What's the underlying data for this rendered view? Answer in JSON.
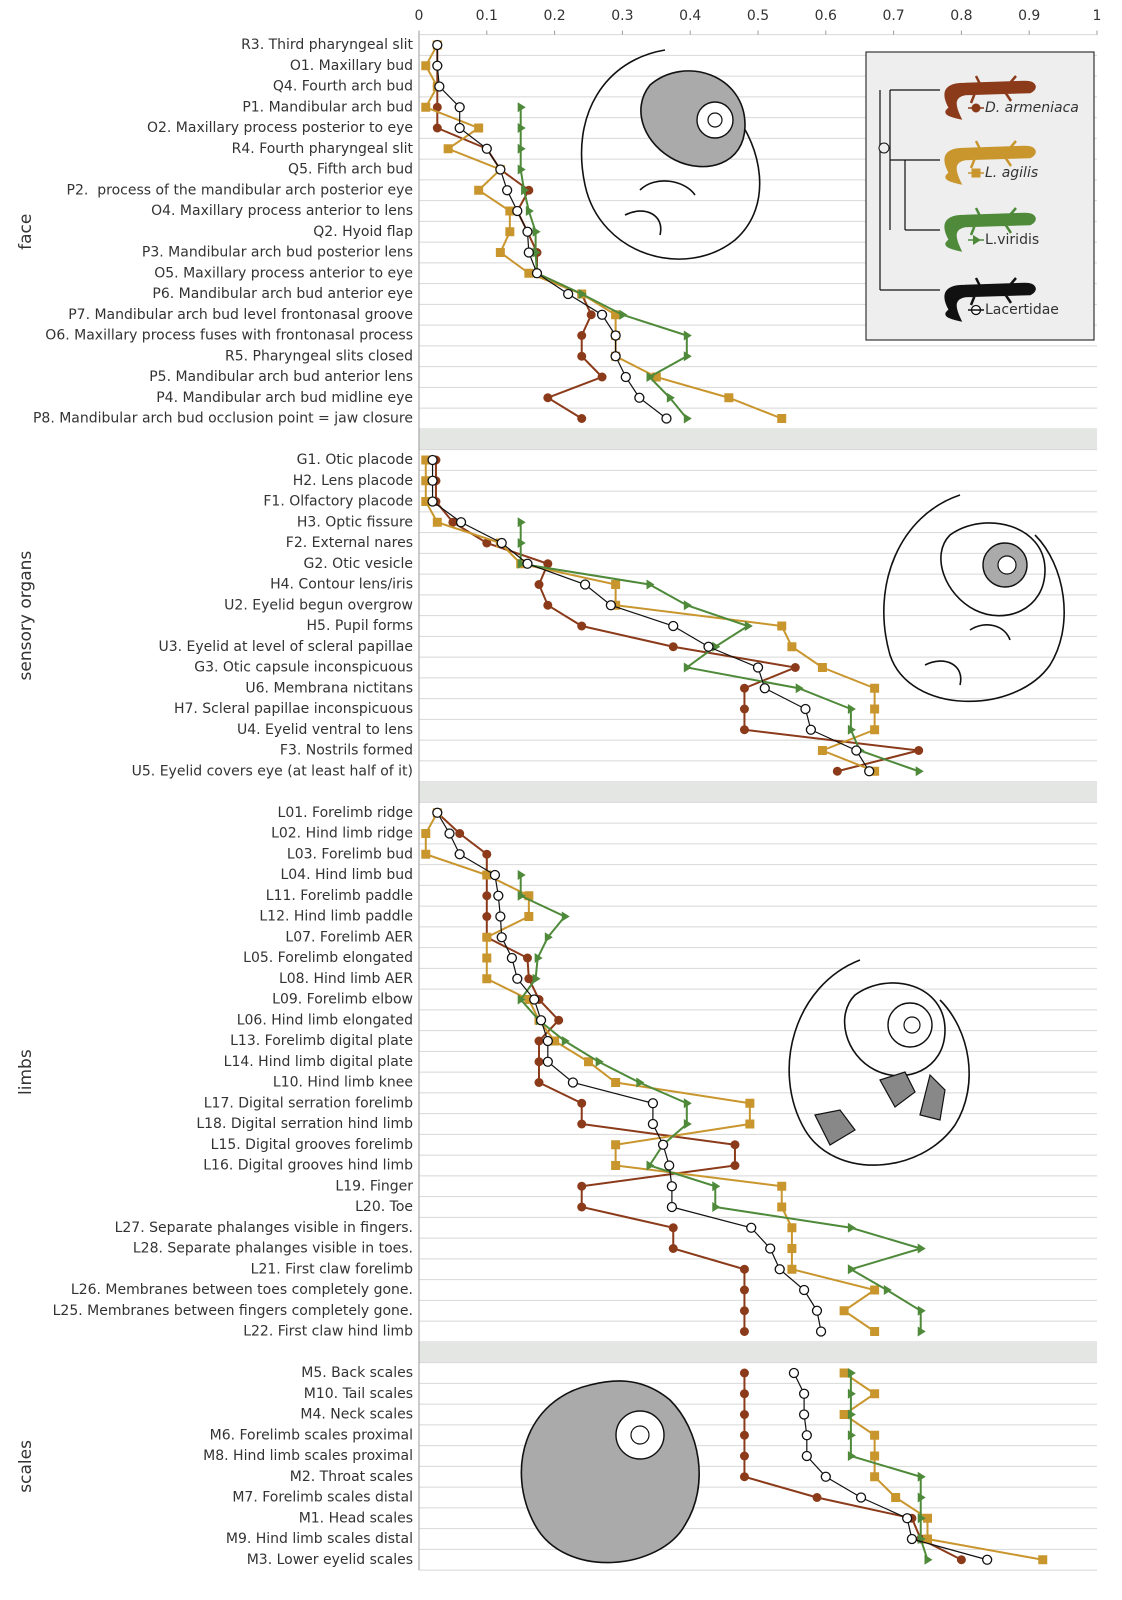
{
  "chart_data": {
    "type": "line",
    "xlim": [
      0,
      1
    ],
    "xticks": [
      0,
      0.1,
      0.2,
      0.3,
      0.4,
      0.5,
      0.6,
      0.7,
      0.8,
      0.9,
      1
    ],
    "groups": [
      "face",
      "sensory organs",
      "limbs",
      "scales"
    ],
    "legend": "upper right",
    "categories": [
      "R3. Third pharyngeal slit",
      "O1. Maxillary bud",
      "Q4. Fourth arch bud",
      "P1. Mandibular arch bud",
      "O2. Maxillary process posterior to eye",
      "R4. Fourth pharyngeal slit",
      "Q5. Fifth arch bud",
      "P2.  process of the mandibular arch posterior eye",
      "O4. Maxillary process anterior to lens",
      "Q2. Hyoid flap",
      "P3. Mandibular arch bud posterior lens",
      "O5. Maxillary process anterior to eye",
      "P6. Mandibular arch bud anterior eye",
      "P7. Mandibular arch bud level frontonasal groove",
      "O6. Maxillary process fuses with frontonasal process",
      "R5. Pharyngeal slits closed",
      "P5. Mandibular arch bud anterior lens",
      "P4. Mandibular arch bud midline eye",
      "P8. Mandibular arch bud occlusion point = jaw closure",
      null,
      "G1. Otic placode",
      "H2. Lens placode",
      "F1. Olfactory placode",
      "H3. Optic fissure",
      "F2. External nares",
      "G2. Otic vesicle",
      "H4. Contour lens/iris",
      "U2. Eyelid begun overgrow",
      "H5. Pupil forms",
      "U3. Eyelid at level of scleral papillae",
      "G3. Otic capsule inconspicuous",
      "U6. Membrana nictitans",
      "H7. Scleral papillae inconspicuous",
      "U4. Eyelid ventral to lens",
      "F3. Nostrils formed",
      "U5. Eyelid covers eye (at least half of it)",
      null,
      "L01. Forelimb ridge",
      "L02. Hind limb ridge",
      "L03. Forelimb bud",
      "L04. Hind limb bud",
      "L11. Forelimb paddle",
      "L12. Hind limb paddle",
      "L07. Forelimb AER",
      "L05. Forelimb elongated",
      "L08. Hind limb AER",
      "L09. Forelimb elbow",
      "L06. Hind limb elongated",
      "L13. Forelimb digital plate",
      "L14. Hind limb digital plate",
      "L10. Hind limb knee",
      "L17. Digital serration forelimb",
      "L18. Digital serration hind limb",
      "L15. Digital grooves forelimb",
      "L16. Digital grooves hind limb",
      "L19. Finger",
      "L20. Toe",
      "L27. Separate phalanges visible in fingers.",
      "L28. Separate phalanges visible in toes.",
      "L21. First claw forelimb",
      "L26. Membranes between toes completely gone.",
      "L25. Membranes between fingers completely gone.",
      "L22. First claw hind limb",
      null,
      "M5. Back scales",
      "M10. Tail scales",
      "M4. Neck scales",
      "M6. Forelimb scales proximal",
      "M8. Hind limb scales proximal",
      "M2. Throat scales",
      "M7. Forelimb scales distal",
      "M1. Head scales",
      "M9. Hind limb scales distal",
      "M3. Lower eyelid scales"
    ],
    "series": [
      {
        "name": "D. armeniaca",
        "color": "#8b3a1a",
        "marker": "circle",
        "italic": true,
        "values": [
          0.027,
          0.027,
          0.027,
          0.027,
          0.027,
          0.1,
          0.12,
          0.162,
          0.145,
          0.16,
          0.174,
          0.174,
          0.24,
          0.254,
          0.24,
          0.24,
          0.27,
          0.19,
          0.24,
          null,
          0.025,
          0.025,
          0.025,
          0.05,
          0.1,
          0.19,
          0.177,
          0.19,
          0.24,
          0.375,
          0.555,
          0.48,
          0.48,
          0.48,
          0.737,
          0.617,
          null,
          0.027,
          0.06,
          0.1,
          0.1,
          0.1,
          0.1,
          0.1,
          0.16,
          0.162,
          0.177,
          0.206,
          0.177,
          0.177,
          0.177,
          0.24,
          0.24,
          0.466,
          0.466,
          0.24,
          0.24,
          0.375,
          0.375,
          0.48,
          0.48,
          0.48,
          0.48,
          null,
          0.48,
          0.48,
          0.48,
          0.48,
          0.48,
          0.48,
          0.587,
          0.727,
          0.74,
          0.8
        ]
      },
      {
        "name": "L. agilis",
        "color": "#c9962e",
        "marker": "square",
        "italic": true,
        "values": [
          0.027,
          0.01,
          0.027,
          0.01,
          0.088,
          0.043,
          0.12,
          0.088,
          0.134,
          0.134,
          0.12,
          0.162,
          0.24,
          0.29,
          0.29,
          0.29,
          0.35,
          0.457,
          0.535,
          null,
          0.01,
          0.01,
          0.01,
          0.027,
          0.12,
          0.15,
          0.29,
          0.29,
          0.535,
          0.55,
          0.595,
          0.672,
          0.672,
          0.672,
          0.595,
          0.672,
          null,
          0.027,
          0.01,
          0.01,
          0.1,
          0.162,
          0.162,
          0.1,
          0.1,
          0.1,
          0.162,
          0.177,
          0.2,
          0.25,
          0.29,
          0.488,
          0.488,
          0.29,
          0.29,
          0.535,
          0.535,
          0.55,
          0.55,
          0.55,
          0.672,
          0.627,
          0.672,
          null,
          0.627,
          0.672,
          0.627,
          0.672,
          0.672,
          0.672,
          0.703,
          0.75,
          0.75,
          0.92
        ]
      },
      {
        "name": "L.viridis",
        "color": "#4e8a3a",
        "marker": "triangle",
        "italic": false,
        "values": [
          null,
          null,
          null,
          0.15,
          0.15,
          0.15,
          0.15,
          0.155,
          0.162,
          0.172,
          0.172,
          0.174,
          0.24,
          0.3,
          0.395,
          0.395,
          0.34,
          0.37,
          0.395,
          null,
          null,
          null,
          null,
          0.15,
          0.15,
          0.15,
          0.34,
          0.395,
          0.485,
          0.437,
          0.395,
          0.56,
          0.637,
          0.637,
          0.65,
          0.737,
          null,
          null,
          null,
          null,
          0.15,
          0.15,
          0.215,
          0.19,
          0.175,
          0.172,
          0.15,
          0.177,
          0.215,
          0.265,
          0.325,
          0.395,
          0.395,
          0.36,
          0.34,
          0.437,
          0.437,
          0.637,
          0.74,
          0.637,
          0.69,
          0.74,
          0.74,
          null,
          0.637,
          0.637,
          0.637,
          0.637,
          0.637,
          0.74,
          0.74,
          0.74,
          0.74,
          0.75
        ]
      },
      {
        "name": "Lacertidae",
        "color": "#111111",
        "marker": "open-circle",
        "italic": false,
        "values": [
          0.027,
          0.027,
          0.03,
          0.06,
          0.06,
          0.1,
          0.12,
          0.13,
          0.145,
          0.16,
          0.162,
          0.174,
          0.22,
          0.27,
          0.29,
          0.29,
          0.305,
          0.325,
          0.365,
          null,
          0.02,
          0.02,
          0.02,
          0.062,
          0.122,
          0.16,
          0.245,
          0.283,
          0.375,
          0.427,
          0.5,
          0.51,
          0.57,
          0.578,
          0.645,
          0.664,
          null,
          0.027,
          0.045,
          0.06,
          0.112,
          0.117,
          0.12,
          0.122,
          0.137,
          0.145,
          0.17,
          0.18,
          0.19,
          0.19,
          0.227,
          0.345,
          0.345,
          0.36,
          0.369,
          0.373,
          0.373,
          0.49,
          0.518,
          0.532,
          0.568,
          0.587,
          0.593,
          null,
          0.553,
          0.568,
          0.568,
          0.572,
          0.572,
          0.6,
          0.652,
          0.72,
          0.727,
          0.838
        ]
      }
    ]
  }
}
